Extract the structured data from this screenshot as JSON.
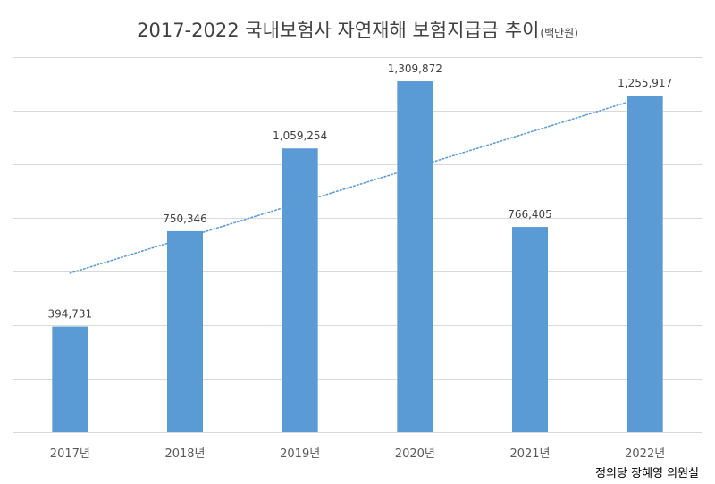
{
  "chart_data": {
    "type": "bar",
    "title": "2017-2022 국내보험사 자연재해 보험지급금 추이",
    "unit_label": "(백만원)",
    "categories": [
      "2017년",
      "2018년",
      "2019년",
      "2020년",
      "2021년",
      "2022년"
    ],
    "values": [
      394731,
      750346,
      1059254,
      1309872,
      766405,
      1255917
    ],
    "data_labels": [
      "394,731",
      "750,346",
      "1,059,254",
      "1,309,872",
      "766,405",
      "1,255,917"
    ],
    "ylim": [
      0,
      1400000
    ],
    "y_grid_step": 200000,
    "grid": true,
    "trendline": {
      "type": "linear",
      "style": "dotted"
    },
    "xlabel": "",
    "ylabel": "",
    "bar_color": "#5B9BD5",
    "trend_color": "#5B9BD5",
    "grid_color": "#D9D9D9"
  },
  "source": "정의당 장혜영 의원실"
}
